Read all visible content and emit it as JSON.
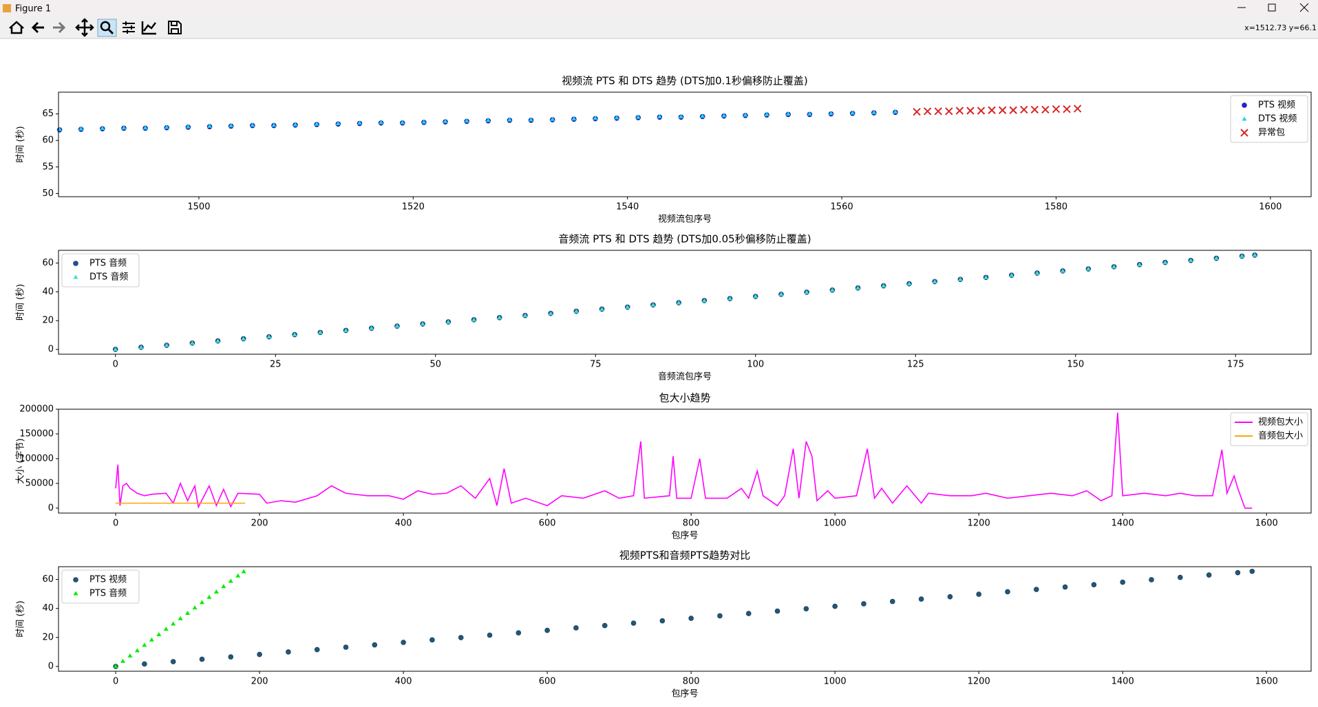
{
  "window": {
    "title": "Figure 1",
    "status": "x=1512.73 y=66.1"
  },
  "chart_data": [
    {
      "type": "scatter",
      "title": "视频流 PTS 和 DTS 趋势 (DTS加0.1秒偏移防止覆盖)",
      "x_label": "视频流包序号",
      "y_label": "时间 (秒)",
      "xlim": [
        1486.9,
        1603.8
      ],
      "xticks": [
        1500,
        1520,
        1540,
        1560,
        1580,
        1600
      ],
      "ylim": [
        49.4,
        69.1
      ],
      "yticks": [
        50,
        55,
        60,
        65
      ],
      "legend": "upper right",
      "series": [
        {
          "name": "PTS 视频",
          "color": "#2020e0",
          "marker": "o",
          "x": [
            1487,
            1489,
            1491,
            1493,
            1495,
            1497,
            1499,
            1501,
            1503,
            1505,
            1507,
            1509,
            1511,
            1513,
            1515,
            1517,
            1519,
            1521,
            1523,
            1525,
            1527,
            1529,
            1531,
            1533,
            1535,
            1537,
            1539,
            1541,
            1543,
            1545,
            1547,
            1549,
            1551,
            1553,
            1555,
            1557,
            1559,
            1561,
            1563,
            1565
          ],
          "values": [
            62.0,
            62.1,
            62.2,
            62.3,
            62.3,
            62.4,
            62.5,
            62.6,
            62.7,
            62.8,
            62.8,
            62.9,
            63.0,
            63.1,
            63.2,
            63.3,
            63.3,
            63.4,
            63.5,
            63.6,
            63.7,
            63.8,
            63.8,
            63.9,
            64.0,
            64.1,
            64.2,
            64.3,
            64.4,
            64.4,
            64.5,
            64.6,
            64.7,
            64.8,
            64.9,
            64.9,
            65.0,
            65.1,
            65.2,
            65.3
          ]
        },
        {
          "name": "DTS 视频",
          "color": "#22d3f0",
          "marker": "^",
          "x": [
            1487,
            1489,
            1491,
            1493,
            1495,
            1497,
            1499,
            1501,
            1503,
            1505,
            1507,
            1509,
            1511,
            1513,
            1515,
            1517,
            1519,
            1521,
            1523,
            1525,
            1527,
            1529,
            1531,
            1533,
            1535,
            1537,
            1539,
            1541,
            1543,
            1545,
            1547,
            1549,
            1551,
            1553,
            1555,
            1557,
            1559,
            1561,
            1563,
            1565
          ],
          "values": [
            62.1,
            62.2,
            62.3,
            62.4,
            62.4,
            62.5,
            62.6,
            62.7,
            62.8,
            62.9,
            62.9,
            63.0,
            63.1,
            63.2,
            63.3,
            63.4,
            63.4,
            63.5,
            63.6,
            63.7,
            63.8,
            63.9,
            63.9,
            64.0,
            64.1,
            64.2,
            64.3,
            64.4,
            64.5,
            64.5,
            64.6,
            64.7,
            64.8,
            64.9,
            65.0,
            65.0,
            65.1,
            65.2,
            65.3,
            65.4
          ]
        },
        {
          "name": "异常包",
          "color": "#d62728",
          "marker": "x",
          "x": [
            1567,
            1568,
            1569,
            1570,
            1571,
            1572,
            1573,
            1574,
            1575,
            1576,
            1577,
            1578,
            1579,
            1580,
            1581,
            1582
          ],
          "values": [
            65.4,
            65.5,
            65.5,
            65.5,
            65.6,
            65.6,
            65.6,
            65.7,
            65.7,
            65.7,
            65.8,
            65.8,
            65.8,
            65.9,
            65.9,
            66.0
          ]
        }
      ]
    },
    {
      "type": "scatter",
      "title": "音频流 PTS 和 DTS 趋势 (DTS加0.05秒偏移防止覆盖)",
      "x_label": "音频流包序号",
      "y_label": "时间 (秒)",
      "xlim": [
        -8.9,
        186.8
      ],
      "xticks": [
        0,
        25,
        50,
        75,
        100,
        125,
        150,
        175
      ],
      "ylim": [
        -3.3,
        68.8
      ],
      "yticks": [
        0,
        20,
        40,
        60
      ],
      "legend": "upper left",
      "series": [
        {
          "name": "PTS 音频",
          "color": "#1f4e9a",
          "marker": "o",
          "x": [
            0,
            4,
            8,
            12,
            16,
            20,
            24,
            28,
            32,
            36,
            40,
            44,
            48,
            52,
            56,
            60,
            64,
            68,
            72,
            76,
            80,
            84,
            88,
            92,
            96,
            100,
            104,
            108,
            112,
            116,
            120,
            124,
            128,
            132,
            136,
            140,
            144,
            148,
            152,
            156,
            160,
            164,
            168,
            172,
            176,
            178
          ],
          "values": [
            0,
            1.5,
            2.9,
            4.4,
            5.9,
            7.4,
            8.8,
            10.3,
            11.8,
            13.2,
            14.7,
            16.2,
            17.7,
            19.1,
            20.6,
            22.1,
            23.6,
            25.0,
            26.5,
            28.0,
            29.4,
            30.9,
            32.4,
            33.9,
            35.3,
            36.8,
            38.3,
            39.7,
            41.2,
            42.7,
            44.2,
            45.6,
            47.1,
            48.6,
            50.0,
            51.5,
            53.0,
            54.5,
            55.9,
            57.4,
            58.9,
            60.4,
            61.8,
            63.3,
            64.8,
            65.5
          ]
        },
        {
          "name": "DTS 音频",
          "color": "#3ee0c8",
          "marker": "^",
          "x": [
            0,
            4,
            8,
            12,
            16,
            20,
            24,
            28,
            32,
            36,
            40,
            44,
            48,
            52,
            56,
            60,
            64,
            68,
            72,
            76,
            80,
            84,
            88,
            92,
            96,
            100,
            104,
            108,
            112,
            116,
            120,
            124,
            128,
            132,
            136,
            140,
            144,
            148,
            152,
            156,
            160,
            164,
            168,
            172,
            176,
            178
          ],
          "values": [
            0,
            1.5,
            2.9,
            4.4,
            5.9,
            7.4,
            8.8,
            10.3,
            11.8,
            13.2,
            14.7,
            16.2,
            17.7,
            19.1,
            20.6,
            22.1,
            23.6,
            25.0,
            26.5,
            28.0,
            29.4,
            30.9,
            32.4,
            33.9,
            35.3,
            36.8,
            38.3,
            39.7,
            41.2,
            42.7,
            44.2,
            45.6,
            47.1,
            48.6,
            50.0,
            51.5,
            53.0,
            54.5,
            55.9,
            57.4,
            58.9,
            60.4,
            61.8,
            63.3,
            64.8,
            65.5
          ]
        }
      ]
    },
    {
      "type": "line",
      "title": "包大小趋势",
      "x_label": "包序号",
      "y_label": "大小 (字节)",
      "xlim": [
        -79.5,
        1662
      ],
      "xticks": [
        0,
        200,
        400,
        600,
        800,
        1000,
        1200,
        1400,
        1600
      ],
      "ylim": [
        -10000,
        200000
      ],
      "yticks": [
        0,
        50000,
        100000,
        150000,
        200000
      ],
      "legend": "upper right",
      "series": [
        {
          "name": "视频包大小",
          "color": "#ff00ff",
          "x": [
            0,
            3,
            6,
            10,
            15,
            20,
            30,
            40,
            50,
            70,
            80,
            90,
            100,
            110,
            115,
            130,
            140,
            150,
            160,
            170,
            200,
            210,
            230,
            250,
            280,
            300,
            320,
            350,
            380,
            400,
            420,
            440,
            460,
            480,
            500,
            520,
            530,
            540,
            550,
            570,
            600,
            620,
            650,
            680,
            700,
            720,
            730,
            735,
            770,
            775,
            780,
            800,
            812,
            820,
            850,
            870,
            880,
            892,
            900,
            920,
            930,
            942,
            950,
            960,
            968,
            975,
            990,
            1000,
            1030,
            1045,
            1055,
            1065,
            1080,
            1100,
            1120,
            1130,
            1160,
            1190,
            1210,
            1240,
            1270,
            1300,
            1330,
            1350,
            1370,
            1385,
            1393,
            1400,
            1430,
            1460,
            1480,
            1500,
            1525,
            1538,
            1545,
            1555,
            1560,
            1570,
            1580
          ],
          "values": [
            40000,
            88000,
            5000,
            45000,
            50000,
            40000,
            30000,
            25000,
            28000,
            30000,
            10000,
            50000,
            15000,
            45000,
            2000,
            45000,
            5000,
            38000,
            3000,
            30000,
            28000,
            10000,
            15000,
            12000,
            25000,
            45000,
            30000,
            25000,
            25000,
            18000,
            35000,
            28000,
            30000,
            45000,
            20000,
            60000,
            5000,
            80000,
            10000,
            20000,
            5000,
            25000,
            20000,
            35000,
            20000,
            25000,
            135000,
            20000,
            25000,
            105000,
            20000,
            20000,
            100000,
            20000,
            20000,
            40000,
            20000,
            75000,
            25000,
            5000,
            25000,
            120000,
            20000,
            135000,
            105000,
            15000,
            35000,
            20000,
            25000,
            120000,
            20000,
            40000,
            10000,
            45000,
            10000,
            30000,
            25000,
            25000,
            30000,
            20000,
            25000,
            30000,
            25000,
            35000,
            15000,
            25000,
            193000,
            25000,
            30000,
            25000,
            30000,
            25000,
            25000,
            118000,
            30000,
            65000,
            40000,
            0,
            0
          ]
        },
        {
          "name": "音频包大小",
          "color": "#ffa500",
          "x": [
            0,
            90,
            180
          ],
          "values": [
            10000,
            10000,
            10000
          ]
        }
      ]
    },
    {
      "type": "scatter",
      "title": "视频PTS和音频PTS趋势对比",
      "x_label": "包序号",
      "y_label": "时间 (秒)",
      "xlim": [
        -79.5,
        1662
      ],
      "xticks": [
        0,
        200,
        400,
        600,
        800,
        1000,
        1200,
        1400,
        1600
      ],
      "ylim": [
        -3.3,
        68.8
      ],
      "yticks": [
        0,
        20,
        40,
        60
      ],
      "legend": "upper left",
      "series": [
        {
          "name": "PTS 视频",
          "color": "#1f5a6e",
          "marker": "o",
          "x": [
            0,
            40,
            80,
            120,
            160,
            200,
            240,
            280,
            320,
            360,
            400,
            440,
            480,
            520,
            560,
            600,
            640,
            680,
            720,
            760,
            800,
            840,
            880,
            920,
            960,
            1000,
            1040,
            1080,
            1120,
            1160,
            1200,
            1240,
            1280,
            1320,
            1360,
            1400,
            1440,
            1480,
            1520,
            1560,
            1580
          ],
          "values": [
            0,
            1.7,
            3.3,
            5.0,
            6.6,
            8.3,
            10.0,
            11.6,
            13.3,
            14.9,
            16.6,
            18.3,
            19.9,
            21.6,
            23.2,
            24.9,
            26.6,
            28.2,
            29.9,
            31.5,
            33.2,
            34.9,
            36.5,
            38.2,
            39.8,
            41.5,
            43.2,
            44.8,
            46.5,
            48.1,
            49.8,
            51.5,
            53.1,
            54.8,
            56.4,
            58.1,
            59.8,
            61.4,
            63.1,
            64.7,
            65.6
          ]
        },
        {
          "name": "PTS 音频",
          "color": "#00ee00",
          "marker": "^",
          "x": [
            0,
            10,
            20,
            30,
            40,
            50,
            60,
            70,
            80,
            90,
            100,
            110,
            120,
            130,
            140,
            150,
            160,
            170,
            178
          ],
          "values": [
            0,
            3.7,
            7.4,
            11.0,
            14.7,
            18.4,
            22.1,
            25.8,
            29.4,
            33.1,
            36.8,
            40.5,
            44.2,
            47.8,
            51.5,
            55.2,
            58.9,
            62.6,
            65.5
          ]
        }
      ]
    }
  ]
}
